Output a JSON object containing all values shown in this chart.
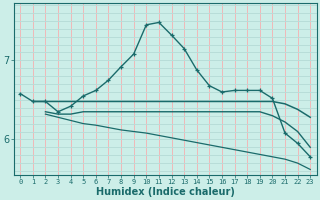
{
  "xlabel": "Humidex (Indice chaleur)",
  "bg_color": "#cceee8",
  "grid_color_v": "#f0b8b8",
  "grid_color_h": "#b8ddd8",
  "line_color": "#1a6b6b",
  "x_ticks": [
    0,
    1,
    2,
    3,
    4,
    5,
    6,
    7,
    8,
    9,
    10,
    11,
    12,
    13,
    14,
    15,
    16,
    17,
    18,
    19,
    20,
    21,
    22,
    23
  ],
  "y_ticks": [
    6,
    7
  ],
  "ylim": [
    5.55,
    7.72
  ],
  "xlim": [
    -0.5,
    23.5
  ],
  "series1": {
    "x": [
      0,
      1,
      2,
      3,
      4,
      5,
      6,
      7,
      8,
      9,
      10,
      11,
      12,
      13,
      14,
      15,
      16,
      17,
      18,
      19,
      20,
      21,
      22,
      23
    ],
    "y": [
      6.58,
      6.48,
      6.48,
      6.35,
      6.42,
      6.55,
      6.62,
      6.75,
      6.92,
      7.08,
      7.45,
      7.48,
      7.32,
      7.15,
      6.88,
      6.68,
      6.6,
      6.62,
      6.62,
      6.62,
      6.52,
      6.08,
      5.95,
      5.78
    ]
  },
  "series2": {
    "x": [
      1,
      2,
      3,
      4,
      5,
      6,
      7,
      8,
      9,
      10,
      11,
      12,
      13,
      14,
      15,
      16,
      17,
      18,
      19,
      20,
      21,
      22,
      23
    ],
    "y": [
      6.48,
      6.48,
      6.48,
      6.48,
      6.48,
      6.48,
      6.48,
      6.48,
      6.48,
      6.48,
      6.48,
      6.48,
      6.48,
      6.48,
      6.48,
      6.48,
      6.48,
      6.48,
      6.48,
      6.48,
      6.45,
      6.38,
      6.28
    ]
  },
  "series3": {
    "x": [
      2,
      3,
      4,
      5,
      6,
      7,
      8,
      9,
      10,
      11,
      12,
      13,
      14,
      15,
      16,
      17,
      18,
      19,
      20,
      21,
      22,
      23
    ],
    "y": [
      6.35,
      6.32,
      6.32,
      6.35,
      6.35,
      6.35,
      6.35,
      6.35,
      6.35,
      6.35,
      6.35,
      6.35,
      6.35,
      6.35,
      6.35,
      6.35,
      6.35,
      6.35,
      6.3,
      6.22,
      6.1,
      5.9
    ]
  },
  "series4": {
    "x": [
      2,
      3,
      4,
      5,
      6,
      7,
      8,
      9,
      10,
      11,
      12,
      13,
      14,
      15,
      16,
      17,
      18,
      19,
      20,
      21,
      22,
      23
    ],
    "y": [
      6.32,
      6.28,
      6.24,
      6.2,
      6.18,
      6.15,
      6.12,
      6.1,
      6.08,
      6.05,
      6.02,
      5.99,
      5.96,
      5.93,
      5.9,
      5.87,
      5.84,
      5.81,
      5.78,
      5.75,
      5.7,
      5.62
    ]
  }
}
